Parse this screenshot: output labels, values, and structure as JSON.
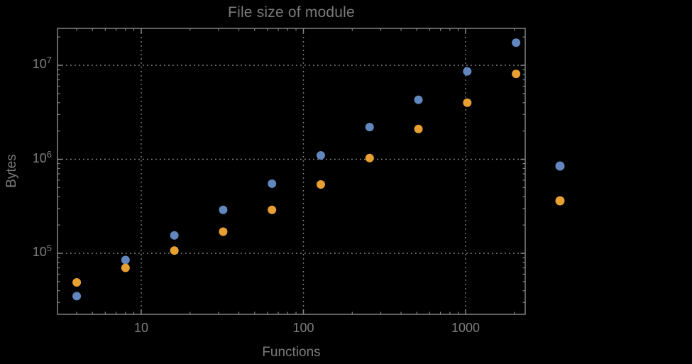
{
  "title": "File size of module",
  "colors": {
    "background": "#000000",
    "frame": "#8b8b8b",
    "gridline": "#8a8a8a",
    "text": "#7a7a7a",
    "series_blue": "#6187BE",
    "series_orange": "#E7A031"
  },
  "axes": {
    "x": {
      "label": "Functions",
      "scale": "log",
      "major_ticks": [
        {
          "value": 10,
          "label": "10"
        },
        {
          "value": 100,
          "label": "100"
        },
        {
          "value": 1000,
          "label": "1000"
        }
      ]
    },
    "y": {
      "label": "Bytes",
      "scale": "log",
      "major_ticks": [
        {
          "value": 100000,
          "base": "10",
          "exp": "5"
        },
        {
          "value": 1000000,
          "base": "10",
          "exp": "6"
        },
        {
          "value": 10000000,
          "base": "10",
          "exp": "7"
        }
      ]
    }
  },
  "legend": {
    "position": "right-outside",
    "entries": [
      {
        "series": "blue",
        "label": ""
      },
      {
        "series": "orange",
        "label": ""
      }
    ]
  },
  "chart_data": {
    "type": "scatter",
    "title": "File size of module",
    "xlabel": "Functions",
    "ylabel": "Bytes",
    "x": [
      4,
      8,
      16,
      32,
      64,
      128,
      256,
      512,
      1024,
      2048
    ],
    "series": [
      {
        "name": "blue",
        "color": "#6187BE",
        "values": [
          35000,
          85000,
          155000,
          290000,
          550000,
          1100000,
          2200000,
          4300000,
          8600000,
          17400000
        ]
      },
      {
        "name": "orange",
        "color": "#E7A031",
        "values": [
          49000,
          70000,
          107000,
          170000,
          290000,
          540000,
          1030000,
          2100000,
          4000000,
          8100000
        ]
      }
    ],
    "xlim": [
      3.05,
      2360
    ],
    "ylim": [
      22000,
      24700000
    ],
    "xscale": "log",
    "yscale": "log",
    "grid": "dotted at decade lines",
    "legend_position": "right-outside, labels not visible"
  }
}
